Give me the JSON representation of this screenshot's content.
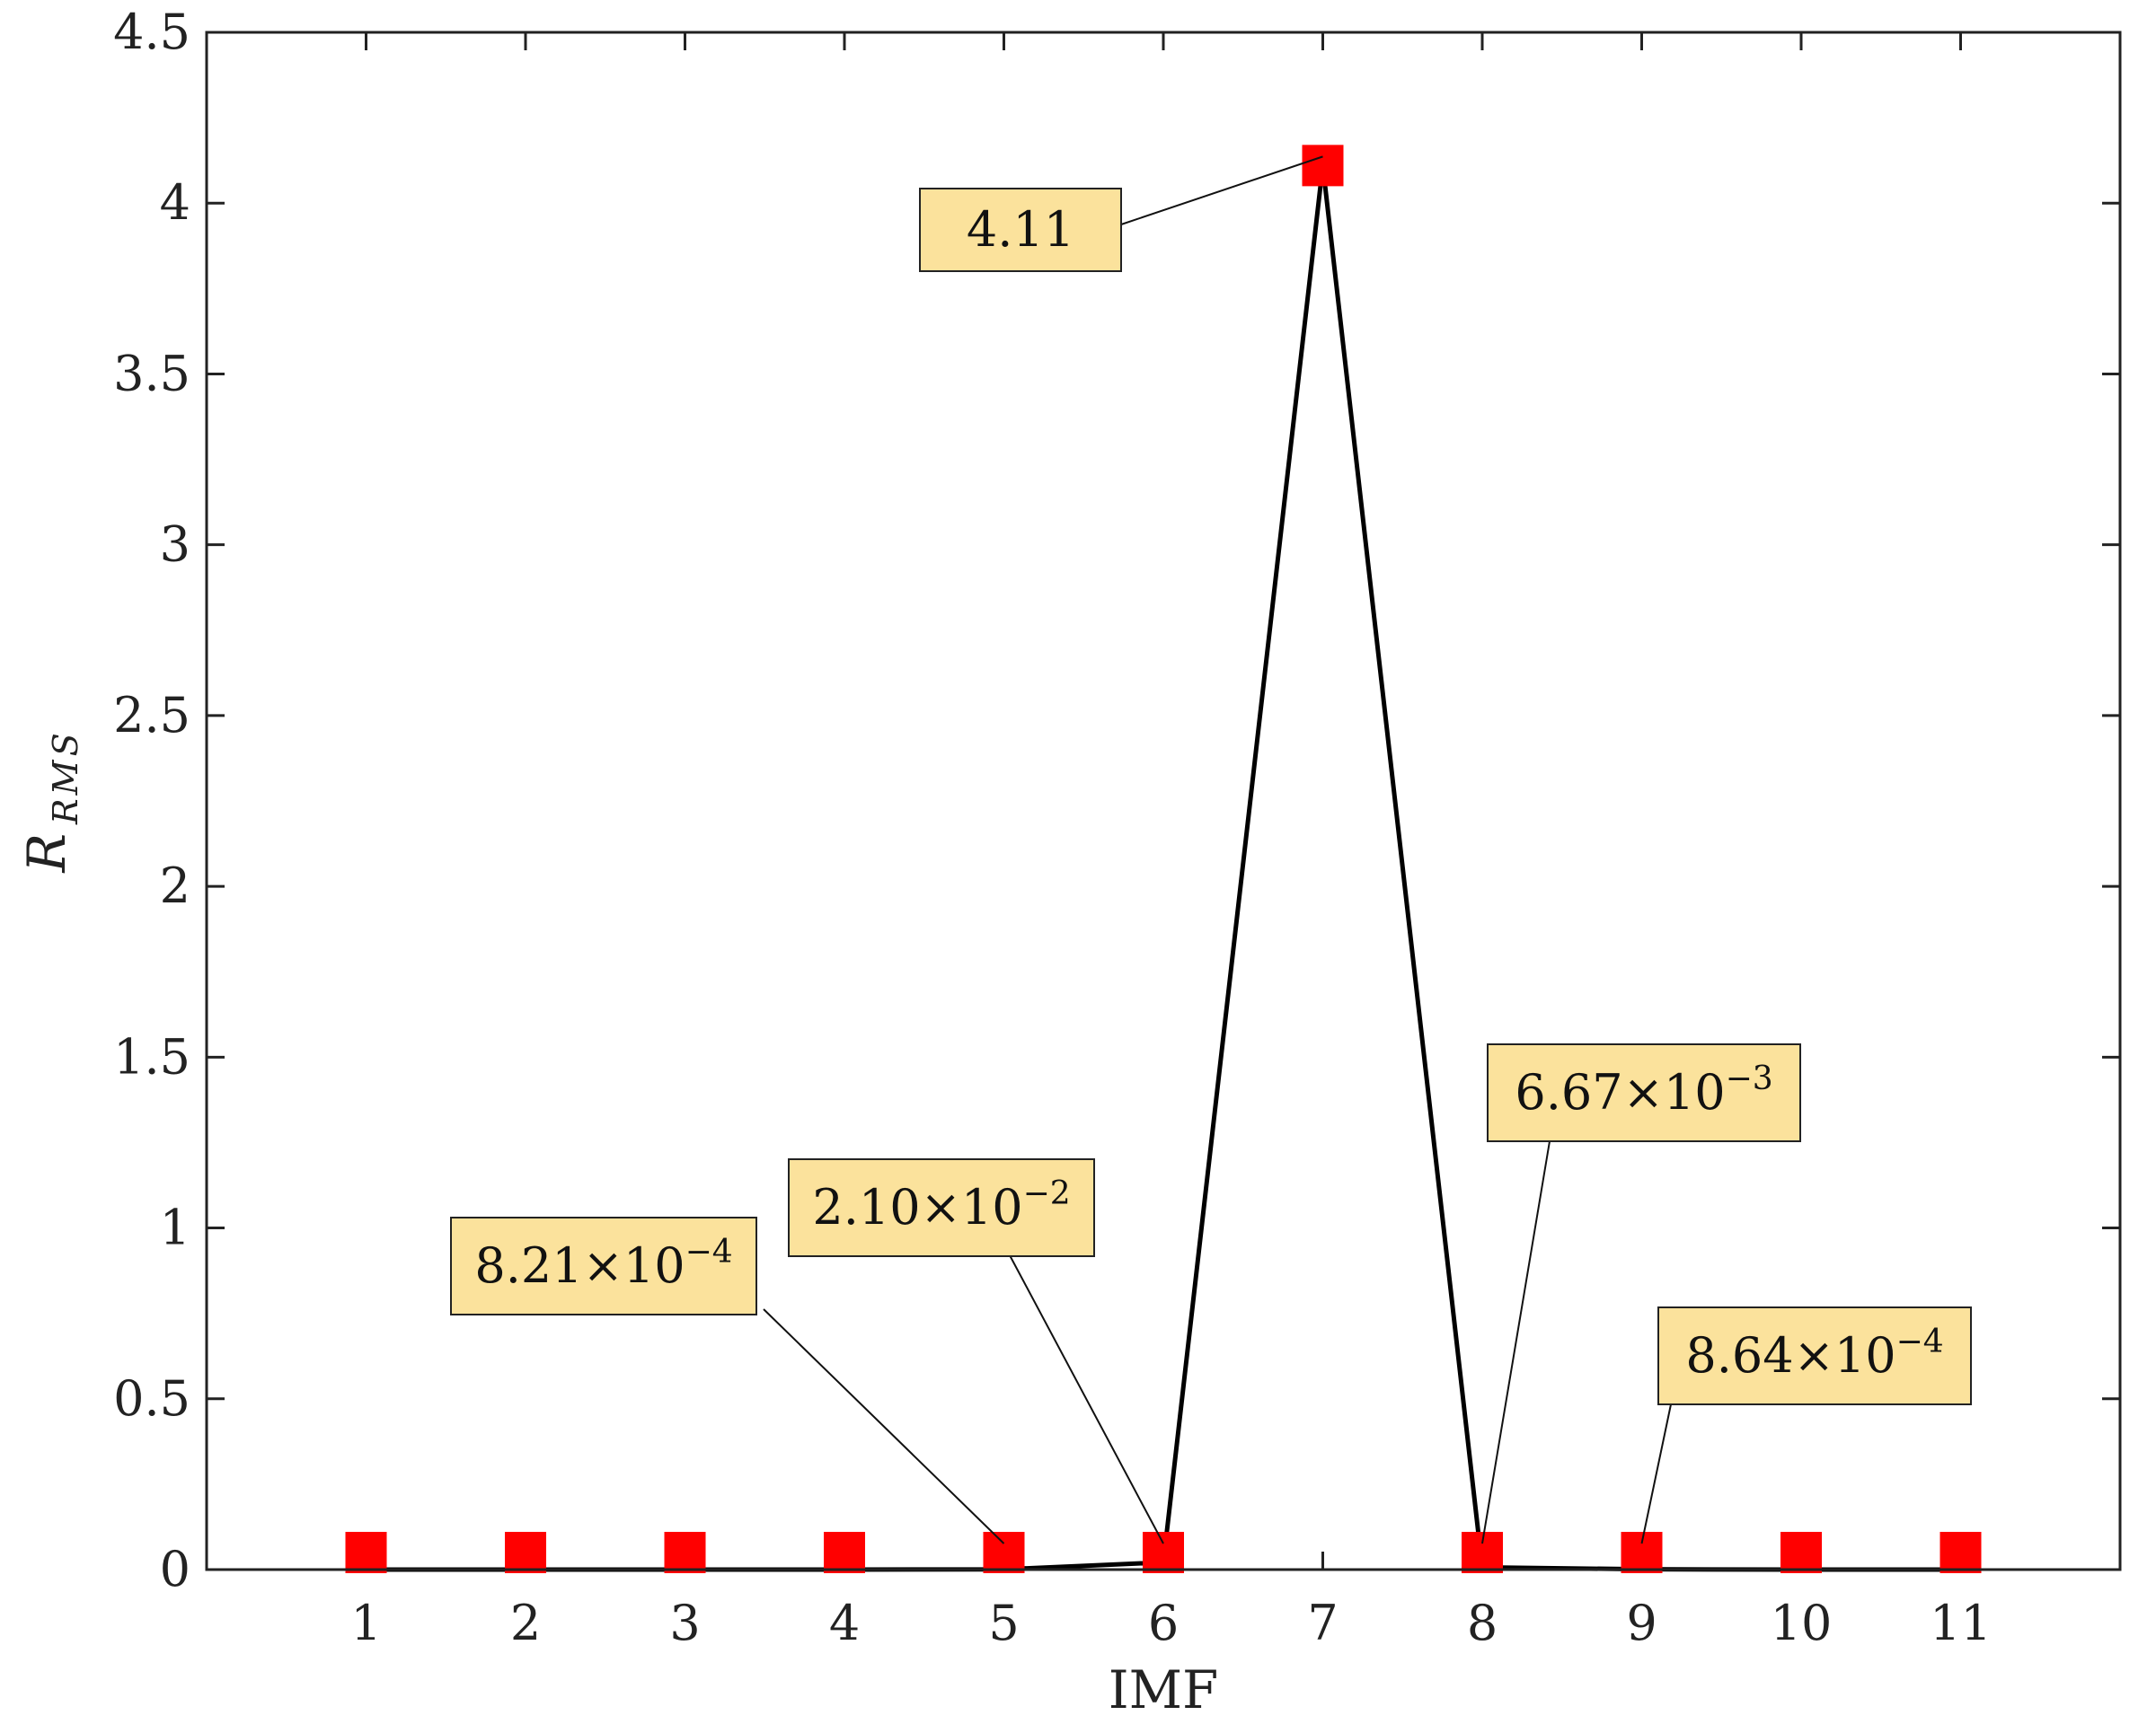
{
  "chart_data": {
    "type": "line",
    "xlabel": "IMF",
    "ylabel": {
      "main": "R",
      "sub": "RMS"
    },
    "x": [
      1,
      2,
      3,
      4,
      5,
      6,
      7,
      8,
      9,
      10,
      11
    ],
    "y": [
      0.0,
      0.0,
      0.0,
      0.0,
      0.000821,
      0.021,
      4.11,
      0.00667,
      0.000864,
      0.0,
      0.0
    ],
    "xlim": [
      0,
      12
    ],
    "ylim": [
      0,
      4.5
    ],
    "xticks": [
      "1",
      "2",
      "3",
      "4",
      "5",
      "6",
      "7",
      "8",
      "9",
      "10",
      "11"
    ],
    "yticks": [
      "0",
      "0.5",
      "1",
      "1.5",
      "2",
      "2.5",
      "3",
      "3.5",
      "4",
      "4.5"
    ],
    "grid": false,
    "line_color": "#000000",
    "marker": "square",
    "marker_color": "#ff0000",
    "annotation_color": "#fbe29c",
    "annotations": [
      {
        "x": 5,
        "mantissa": "8.21",
        "exp": "−4"
      },
      {
        "x": 6,
        "mantissa": "2.10",
        "exp": "−2"
      },
      {
        "x": 7,
        "mantissa": "4.11",
        "exp": ""
      },
      {
        "x": 8,
        "mantissa": "6.67",
        "exp": "−3"
      },
      {
        "x": 9,
        "mantissa": "8.64",
        "exp": "−4"
      }
    ]
  }
}
